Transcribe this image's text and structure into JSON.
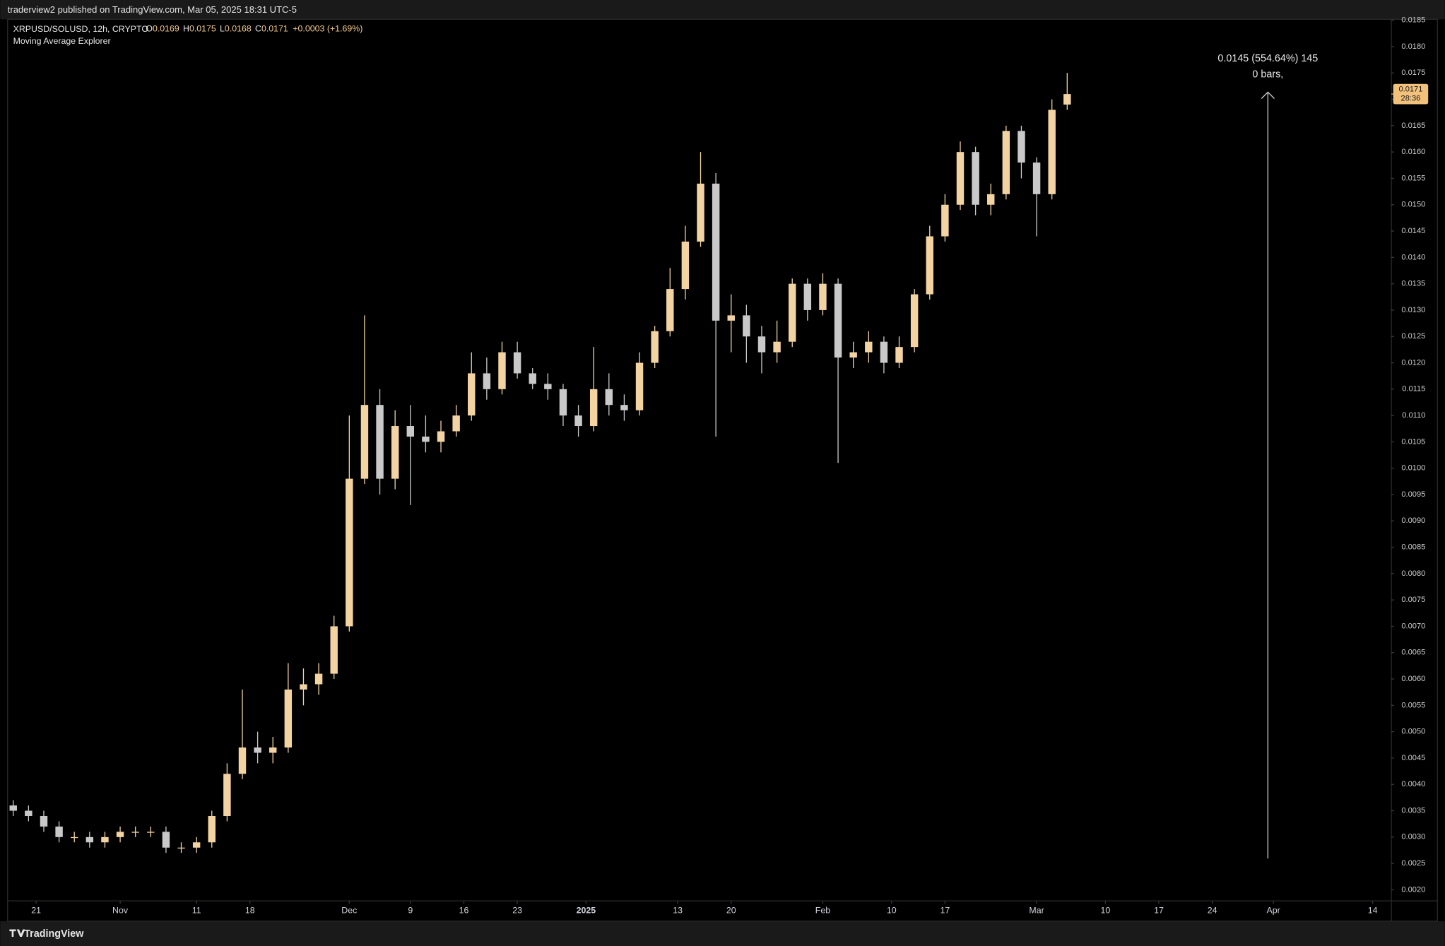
{
  "header": {
    "publisher": "traderview2 published on TradingView.com, Mar 05, 2025 18:31 UTC-5"
  },
  "footer": {
    "brand": "TradingView"
  },
  "chart_data": {
    "type": "candlestick",
    "symbol": "XRPUSD/SOLUSD, 12h, CRYPTO",
    "legend": [
      {
        "label": "O",
        "value": 0.0169
      },
      {
        "label": "H",
        "value": 0.0175
      },
      {
        "label": "L",
        "value": 0.0168
      },
      {
        "label": "C",
        "value": 0.0171
      }
    ],
    "change": "+0.0003 (+1.69%)",
    "indicator": "Moving Average Explorer",
    "measure": {
      "label": "0.0145 (554.64%) 145",
      "bars": "0 bars,"
    },
    "last_price": 0.0171,
    "countdown": "28:36",
    "up_color": "#f3d3a1",
    "down_color": "#c9c9c9",
    "x": [
      "Oct 18",
      "Oct 20",
      "Oct 22",
      "Oct 24",
      "Oct 26",
      "Oct 28",
      "Oct 30",
      "Nov 1",
      "Nov 3",
      "Nov 5",
      "Nov 7",
      "Nov 9",
      "Nov 11",
      "Nov 13",
      "Nov 15",
      "Nov 17",
      "Nov 19",
      "Nov 21",
      "Nov 23",
      "Nov 25",
      "Nov 27",
      "Nov 29",
      "Dec 1",
      "Dec 3",
      "Dec 5",
      "Dec 7",
      "Dec 9",
      "Dec 11",
      "Dec 13",
      "Dec 15",
      "Dec 17",
      "Dec 19",
      "Dec 21",
      "Dec 23",
      "Dec 25",
      "Dec 27",
      "Dec 29",
      "Dec 31",
      "Jan 2",
      "Jan 4",
      "Jan 6",
      "Jan 8",
      "Jan 10",
      "Jan 12",
      "Jan 14",
      "Jan 16",
      "Jan 18",
      "Jan 20",
      "Jan 22",
      "Jan 24",
      "Jan 26",
      "Jan 28",
      "Jan 30",
      "Feb 1",
      "Feb 3",
      "Feb 5",
      "Feb 7",
      "Feb 9",
      "Feb 11",
      "Feb 13",
      "Feb 15",
      "Feb 17",
      "Feb 19",
      "Feb 21",
      "Feb 23",
      "Feb 25",
      "Feb 27",
      "Mar 1",
      "Mar 3",
      "Mar 5"
    ],
    "open": [
      0.0036,
      0.0035,
      0.0034,
      0.0032,
      0.003,
      0.003,
      0.0029,
      0.003,
      0.0031,
      0.0031,
      0.0031,
      0.0028,
      0.0028,
      0.0029,
      0.0034,
      0.0042,
      0.0047,
      0.0046,
      0.0047,
      0.0058,
      0.0059,
      0.0061,
      0.007,
      0.0098,
      0.0112,
      0.0098,
      0.0108,
      0.0106,
      0.0105,
      0.0107,
      0.011,
      0.0118,
      0.0115,
      0.0122,
      0.0118,
      0.0116,
      0.0115,
      0.011,
      0.0108,
      0.0115,
      0.0112,
      0.0111,
      0.012,
      0.0126,
      0.0134,
      0.0143,
      0.0154,
      0.0128,
      0.0129,
      0.0125,
      0.0122,
      0.0124,
      0.0135,
      0.013,
      0.0135,
      0.0121,
      0.0122,
      0.0124,
      0.012,
      0.0123,
      0.0133,
      0.0144,
      0.015,
      0.016,
      0.015,
      0.0152,
      0.0164,
      0.0158,
      0.0152,
      0.0169
    ],
    "high": [
      0.0037,
      0.0036,
      0.0035,
      0.0033,
      0.0031,
      0.0031,
      0.0031,
      0.0032,
      0.0032,
      0.0032,
      0.0032,
      0.0029,
      0.003,
      0.0035,
      0.0044,
      0.0058,
      0.005,
      0.0049,
      0.0063,
      0.0062,
      0.0063,
      0.0072,
      0.011,
      0.0129,
      0.0115,
      0.0111,
      0.0112,
      0.011,
      0.0109,
      0.0112,
      0.0122,
      0.0121,
      0.0124,
      0.0124,
      0.0119,
      0.0118,
      0.0116,
      0.0112,
      0.0123,
      0.0118,
      0.0114,
      0.0122,
      0.0127,
      0.0138,
      0.0146,
      0.016,
      0.0156,
      0.0133,
      0.0131,
      0.0127,
      0.0128,
      0.0136,
      0.0136,
      0.0137,
      0.0136,
      0.0124,
      0.0126,
      0.0125,
      0.0125,
      0.0134,
      0.0146,
      0.0152,
      0.0162,
      0.0161,
      0.0154,
      0.0165,
      0.0165,
      0.0159,
      0.017,
      0.0175
    ],
    "low": [
      0.0034,
      0.0033,
      0.0031,
      0.0029,
      0.0029,
      0.0028,
      0.0028,
      0.0029,
      0.003,
      0.003,
      0.0027,
      0.0027,
      0.0027,
      0.0028,
      0.0033,
      0.0041,
      0.0044,
      0.0044,
      0.0046,
      0.0055,
      0.0057,
      0.006,
      0.0069,
      0.0097,
      0.0095,
      0.0096,
      0.0093,
      0.0103,
      0.0103,
      0.0106,
      0.0109,
      0.0113,
      0.0114,
      0.0117,
      0.0115,
      0.0113,
      0.0108,
      0.0106,
      0.0107,
      0.011,
      0.0109,
      0.011,
      0.0119,
      0.0125,
      0.0132,
      0.0142,
      0.0106,
      0.0122,
      0.012,
      0.0118,
      0.012,
      0.0123,
      0.0128,
      0.0129,
      0.0101,
      0.0119,
      0.012,
      0.0118,
      0.0119,
      0.0122,
      0.0132,
      0.0143,
      0.0149,
      0.0148,
      0.0148,
      0.0151,
      0.0155,
      0.0144,
      0.0151,
      0.0168
    ],
    "close": [
      0.0035,
      0.0034,
      0.0032,
      0.003,
      0.003,
      0.0029,
      0.003,
      0.0031,
      0.0031,
      0.0031,
      0.0028,
      0.0028,
      0.0029,
      0.0034,
      0.0042,
      0.0047,
      0.0046,
      0.0047,
      0.0058,
      0.0059,
      0.0061,
      0.007,
      0.0098,
      0.0112,
      0.0098,
      0.0108,
      0.0106,
      0.0105,
      0.0107,
      0.011,
      0.0118,
      0.0115,
      0.0122,
      0.0118,
      0.0116,
      0.0115,
      0.011,
      0.0108,
      0.0115,
      0.0112,
      0.0111,
      0.012,
      0.0126,
      0.0134,
      0.0143,
      0.0154,
      0.0128,
      0.0129,
      0.0125,
      0.0122,
      0.0124,
      0.0135,
      0.013,
      0.0135,
      0.0121,
      0.0122,
      0.0124,
      0.012,
      0.0123,
      0.0133,
      0.0144,
      0.015,
      0.016,
      0.015,
      0.0152,
      0.0164,
      0.0158,
      0.0152,
      0.0168,
      0.0171
    ],
    "xticks": [
      {
        "value": "Oct 21",
        "label": "21"
      },
      {
        "value": "Nov 1",
        "label": "Nov"
      },
      {
        "value": "Nov 11",
        "label": "11"
      },
      {
        "value": "Nov 18",
        "label": "18"
      },
      {
        "value": "Dec 1",
        "label": "Dec"
      },
      {
        "value": "Dec 9",
        "label": "9"
      },
      {
        "value": "Dec 16",
        "label": "16"
      },
      {
        "value": "Dec 23",
        "label": "23"
      },
      {
        "value": "Jan 1",
        "label": "2025"
      },
      {
        "value": "Jan 13",
        "label": "13"
      },
      {
        "value": "Jan 20",
        "label": "20"
      },
      {
        "value": "Feb 1",
        "label": "Feb"
      },
      {
        "value": "Feb 10",
        "label": "10"
      },
      {
        "value": "Feb 17",
        "label": "17"
      },
      {
        "value": "Mar 1",
        "label": "Mar"
      },
      {
        "value": "Mar 10",
        "label": "10"
      },
      {
        "value": "Mar 17",
        "label": "17"
      },
      {
        "value": "Mar 24",
        "label": "24"
      },
      {
        "value": "Apr 1",
        "label": "Apr"
      },
      {
        "value": "Apr 14",
        "label": "14"
      }
    ],
    "ylim": [
      0.0018,
      0.0185
    ],
    "yticks": [
      0.0185,
      {
        "value": 0.018,
        "label": "0.0180"
      },
      0.0175,
      {
        "value": 0.017,
        "label": "0.0170"
      },
      0.0165,
      {
        "value": 0.016,
        "label": "0.0160"
      },
      0.0155,
      {
        "value": 0.015,
        "label": "0.0150"
      },
      0.0145,
      {
        "value": 0.014,
        "label": "0.0140"
      },
      0.0135,
      {
        "value": 0.013,
        "label": "0.0130"
      },
      0.0125,
      {
        "value": 0.012,
        "label": "0.0120"
      },
      0.0115,
      {
        "value": 0.011,
        "label": "0.0110"
      },
      0.0105,
      {
        "value": 0.01,
        "label": "0.0100"
      },
      0.0095,
      {
        "value": 0.009,
        "label": "0.0090"
      },
      0.0085,
      {
        "value": 0.008,
        "label": "0.0080"
      },
      0.0075,
      {
        "value": 0.007,
        "label": "0.0070"
      },
      0.0065,
      {
        "value": 0.006,
        "label": "0.0060"
      },
      0.0055,
      {
        "value": 0.005,
        "label": "0.0050"
      },
      0.0045,
      {
        "value": 0.004,
        "label": "0.0040"
      },
      0.0035,
      {
        "value": 0.003,
        "label": "0.0030"
      },
      0.0025,
      {
        "value": 0.002,
        "label": "0.0020"
      }
    ]
  }
}
